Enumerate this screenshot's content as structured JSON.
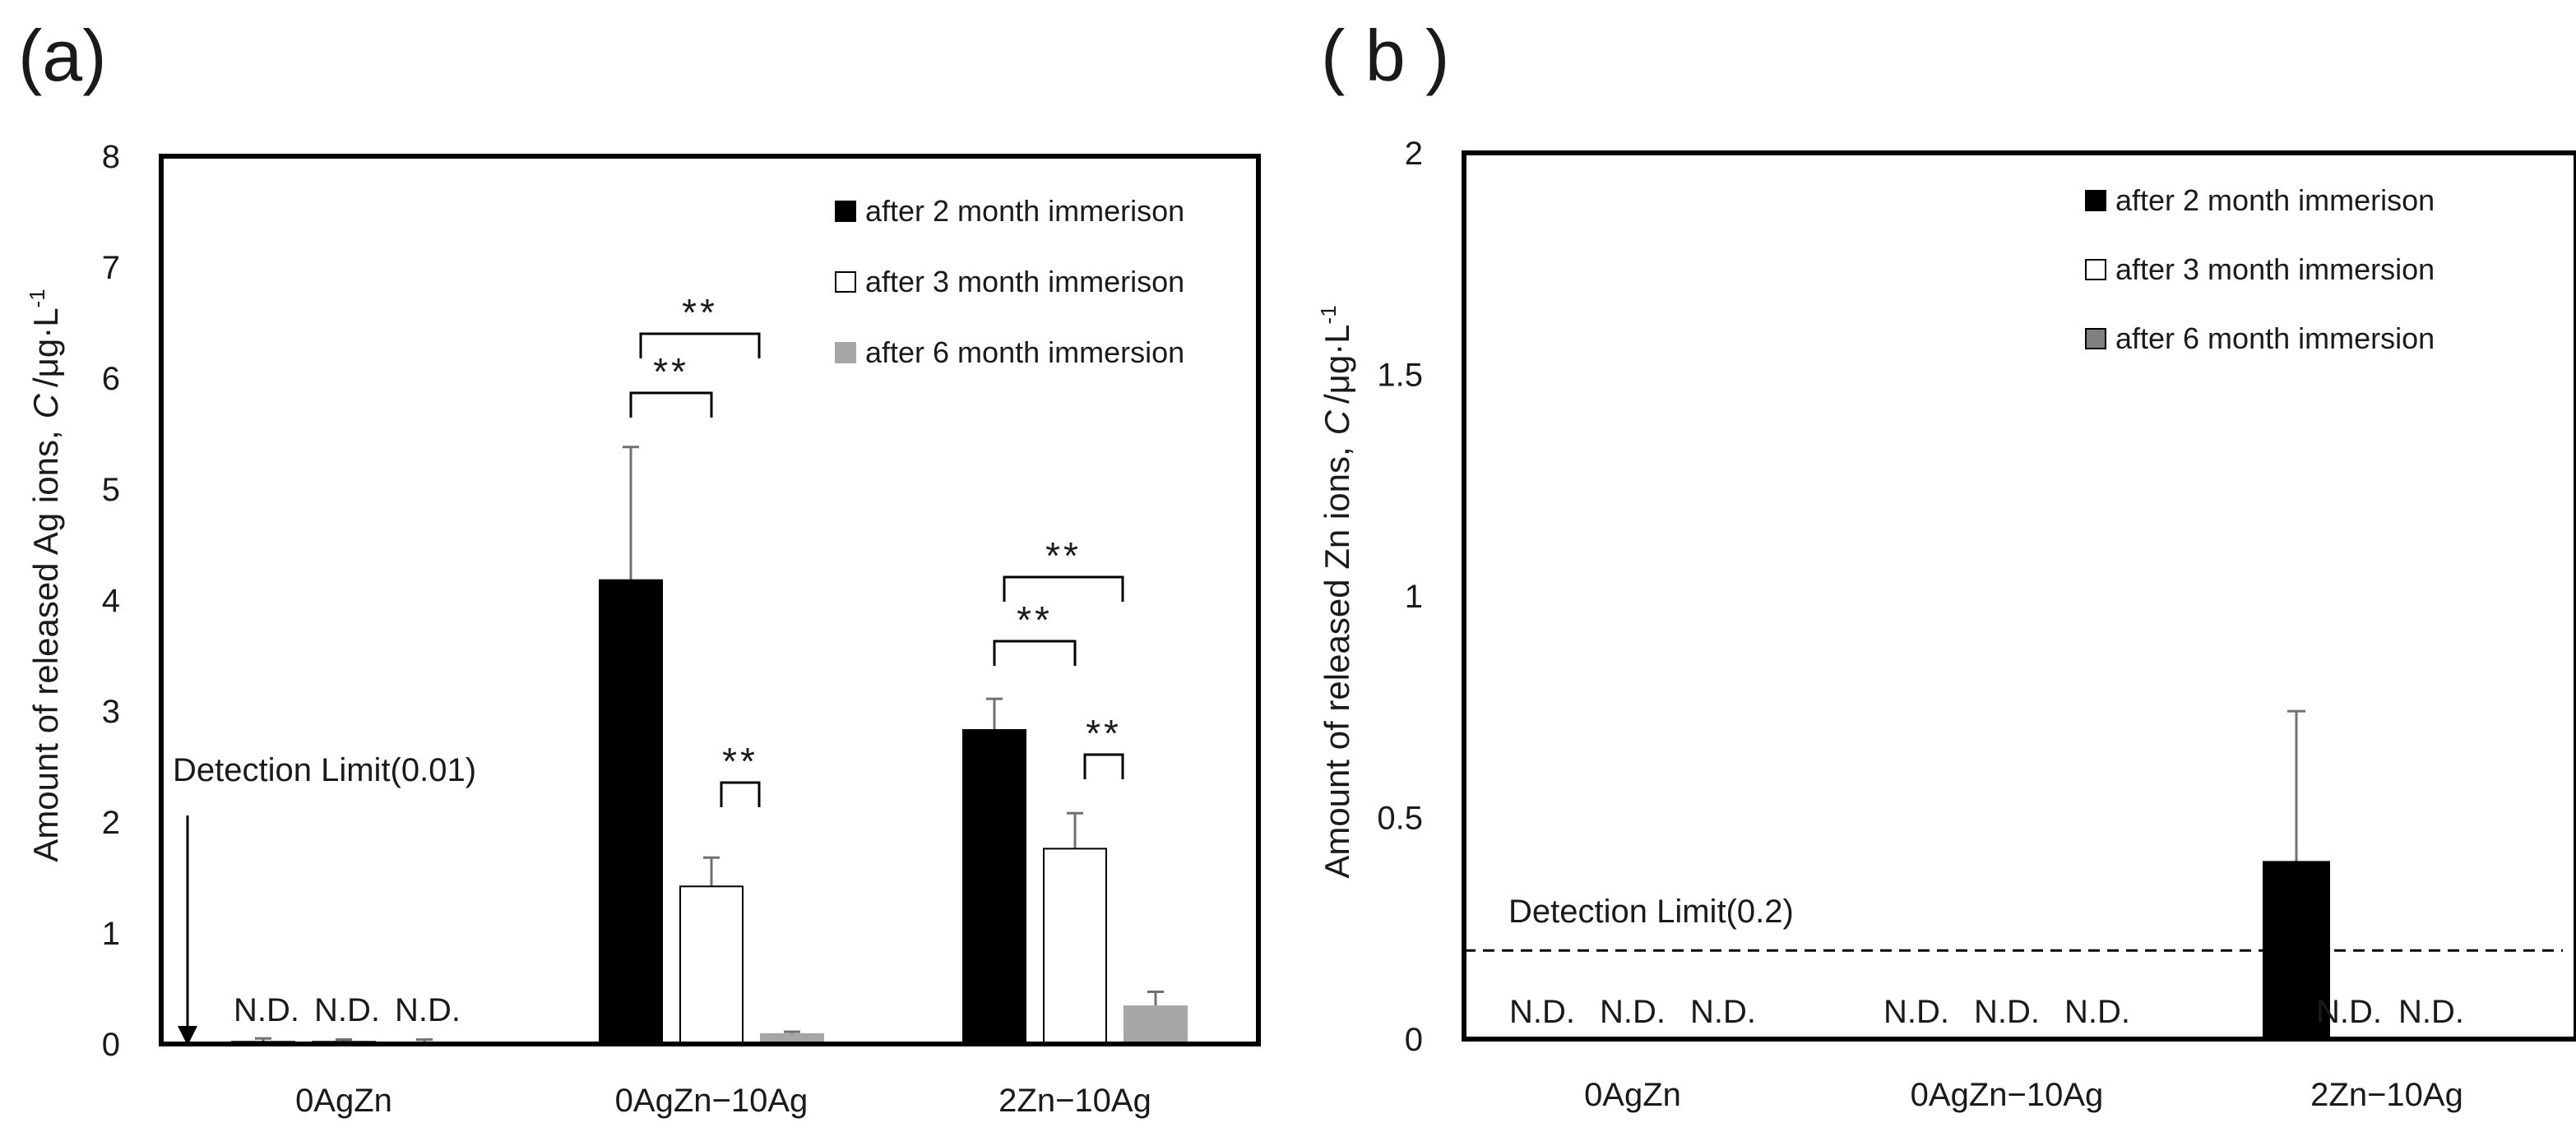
{
  "panels": [
    {
      "label": "(a)",
      "ylabel_pre": "Amount of released Ag ions,",
      "ylabel_var": "C",
      "ylabel_unit": "/μg·L",
      "ylabel_exp": "-1",
      "legend": [
        {
          "name": "after 2 month immerison",
          "color": "#000000"
        },
        {
          "name": "after 3 month immerison",
          "color": "#ffffff"
        },
        {
          "name": "after 6 month immersion",
          "color": "#a6a6a6"
        }
      ],
      "detection_limit_text": "Detection Limit(0.01)",
      "nd_label": "N.D.",
      "sig_label": "**"
    },
    {
      "label": "( b )",
      "ylabel_pre": "Amount of released Zn ions,",
      "ylabel_var": "C",
      "ylabel_unit": "/μg·L",
      "ylabel_exp": "-1",
      "legend": [
        {
          "name": "after 2 month immerison",
          "color": "#000000"
        },
        {
          "name": "after 3 month immersion",
          "color": "#ffffff"
        },
        {
          "name": "after 6 month immersion",
          "color": "#808080"
        }
      ],
      "detection_limit_text": "Detection Limit(0.2)",
      "nd_label": "N.D."
    }
  ],
  "chart_data": [
    {
      "type": "bar",
      "title": "(a)",
      "xlabel": "",
      "ylabel": "Amount of released Ag ions, C /μg·L-1",
      "ylim": [
        0,
        8
      ],
      "yticks": [
        "0",
        "1",
        "2",
        "3",
        "4",
        "5",
        "6",
        "7",
        "8"
      ],
      "categories": [
        "0AgZn",
        "0AgZn−10Ag",
        "2Zn−10Ag"
      ],
      "series": [
        {
          "name": "after 2 month immerison",
          "values": [
            0.02,
            4.18,
            2.83
          ],
          "errors": [
            0.03,
            1.2,
            0.28
          ]
        },
        {
          "name": "after 3 month immerison",
          "values": [
            0.02,
            1.42,
            1.76
          ],
          "errors": [
            0.02,
            0.26,
            0.32
          ]
        },
        {
          "name": "after 6 month immersion",
          "values": [
            0.01,
            0.09,
            0.34
          ],
          "errors": [
            0.03,
            0.02,
            0.13
          ]
        }
      ],
      "not_detected": [
        {
          "category": "0AgZn",
          "series": [
            "after 2 month immerison",
            "after 3 month immerison",
            "after 6 month immersion"
          ]
        }
      ],
      "detection_limit": 0.01,
      "significance": [
        {
          "category": "0AgZn−10Ag",
          "pair": [
            "after 2 month immerison",
            "after 3 month immerison"
          ],
          "label": "**"
        },
        {
          "category": "0AgZn−10Ag",
          "pair": [
            "after 2 month immerison",
            "after 6 month immersion"
          ],
          "label": "**"
        },
        {
          "category": "0AgZn−10Ag",
          "pair": [
            "after 3 month immerison",
            "after 6 month immersion"
          ],
          "label": "**"
        },
        {
          "category": "2Zn−10Ag",
          "pair": [
            "after 2 month immerison",
            "after 3 month immerison"
          ],
          "label": "**"
        },
        {
          "category": "2Zn−10Ag",
          "pair": [
            "after 2 month immerison",
            "after 6 month immersion"
          ],
          "label": "**"
        },
        {
          "category": "2Zn−10Ag",
          "pair": [
            "after 3 month immerison",
            "after 6 month immersion"
          ],
          "label": "**"
        }
      ]
    },
    {
      "type": "bar",
      "title": "( b )",
      "xlabel": "",
      "ylabel": "Amount of released Zn ions, C /μg·L-1",
      "ylim": [
        0,
        2
      ],
      "yticks": [
        "0",
        "0.5",
        "1",
        "1.5",
        "2"
      ],
      "categories": [
        "0AgZn",
        "0AgZn−10Ag",
        "2Zn−10Ag"
      ],
      "series": [
        {
          "name": "after 2 month immerison",
          "values": [
            null,
            null,
            0.4
          ],
          "errors": [
            null,
            null,
            0.34
          ]
        },
        {
          "name": "after 3 month immersion",
          "values": [
            null,
            null,
            null
          ],
          "errors": [
            null,
            null,
            null
          ]
        },
        {
          "name": "after 6 month immersion",
          "values": [
            null,
            null,
            null
          ],
          "errors": [
            null,
            null,
            null
          ]
        }
      ],
      "not_detected": [
        {
          "category": "0AgZn",
          "series": [
            "after 2 month immerison",
            "after 3 month immersion",
            "after 6 month immersion"
          ]
        },
        {
          "category": "0AgZn−10Ag",
          "series": [
            "after 2 month immerison",
            "after 3 month immersion",
            "after 6 month immersion"
          ]
        },
        {
          "category": "2Zn−10Ag",
          "series": [
            "after 3 month immersion",
            "after 6 month immersion"
          ]
        }
      ],
      "detection_limit": 0.2
    }
  ]
}
